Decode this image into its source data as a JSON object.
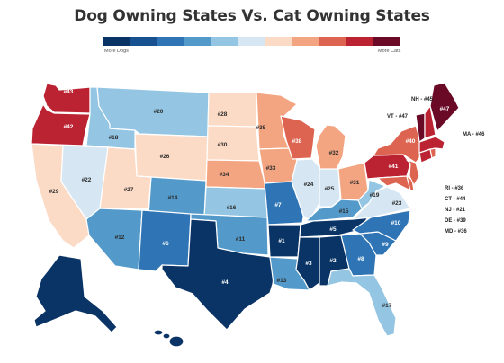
{
  "title": "Dog Owning States Vs. Cat Owning States",
  "legend": {
    "left_label": "More Dogs",
    "right_label": "More Cats",
    "colors": [
      "#0b3466",
      "#17518f",
      "#2f75b5",
      "#5399c9",
      "#94c6e3",
      "#d6e7f3",
      "#fcdbc6",
      "#f3a582",
      "#dd6450",
      "#bb2333",
      "#6a0a26"
    ]
  },
  "states": {
    "WA": {
      "rank": "#43",
      "color": "#bb2333"
    },
    "OR": {
      "rank": "#42",
      "color": "#bb2333"
    },
    "CA": {
      "rank": "#29",
      "color": "#fcdbc6"
    },
    "NV": {
      "rank": "#22",
      "color": "#d6e7f3"
    },
    "ID": {
      "rank": "#18",
      "color": "#94c6e3"
    },
    "MT": {
      "rank": "#20",
      "color": "#94c6e3"
    },
    "WY": {
      "rank": "#26",
      "color": "#fcdbc6"
    },
    "UT": {
      "rank": "#27",
      "color": "#fcdbc6"
    },
    "AZ": {
      "rank": "#12",
      "color": "#5399c9"
    },
    "CO": {
      "rank": "#14",
      "color": "#5399c9"
    },
    "NM": {
      "rank": "#6",
      "color": "#2f75b5"
    },
    "ND": {
      "rank": "#28",
      "color": "#fcdbc6"
    },
    "SD": {
      "rank": "#30",
      "color": "#fcdbc6"
    },
    "NE": {
      "rank": "#34",
      "color": "#f3a582"
    },
    "KS": {
      "rank": "#16",
      "color": "#94c6e3"
    },
    "OK": {
      "rank": "#11",
      "color": "#5399c9"
    },
    "TX": {
      "rank": "#4",
      "color": "#0b3466"
    },
    "MN": {
      "rank": "#35",
      "color": "#f3a582"
    },
    "IA": {
      "rank": "#33",
      "color": "#f3a582"
    },
    "MO": {
      "rank": "#7",
      "color": "#2f75b5"
    },
    "AR": {
      "rank": "#1",
      "color": "#0b3466"
    },
    "LA": {
      "rank": "#13",
      "color": "#5399c9"
    },
    "WI": {
      "rank": "#38",
      "color": "#dd6450"
    },
    "IL": {
      "rank": "#24",
      "color": "#d6e7f3"
    },
    "MI": {
      "rank": "#32",
      "color": "#f3a582"
    },
    "IN": {
      "rank": "#25",
      "color": "#d6e7f3"
    },
    "OH": {
      "rank": "#31",
      "color": "#f3a582"
    },
    "KY": {
      "rank": "#15",
      "color": "#5399c9"
    },
    "TN": {
      "rank": "#5",
      "color": "#0b3466"
    },
    "MS": {
      "rank": "#3",
      "color": "#0b3466"
    },
    "AL": {
      "rank": "#2",
      "color": "#0b3466"
    },
    "GA": {
      "rank": "#8",
      "color": "#2f75b5"
    },
    "FL": {
      "rank": "#17",
      "color": "#94c6e3"
    },
    "SC": {
      "rank": "#9",
      "color": "#2f75b5"
    },
    "NC": {
      "rank": "#10",
      "color": "#2f75b5"
    },
    "VA": {
      "rank": "#23",
      "color": "#d6e7f3"
    },
    "WV": {
      "rank": "#19",
      "color": "#94c6e3"
    },
    "PA": {
      "rank": "#41",
      "color": "#bb2333"
    },
    "NY": {
      "rank": "#40",
      "color": "#dd6450"
    },
    "ME": {
      "rank": "#47",
      "color": "#6a0a26"
    },
    "VT": {
      "rank": "#47",
      "color": "#6a0a26"
    },
    "NH": {
      "rank": "#45",
      "color": "#bb2333"
    },
    "MA": {
      "rank": "#46",
      "color": "#bb2333"
    },
    "RI": {
      "rank": "#36",
      "color": "#dd6450"
    },
    "CT": {
      "rank": "#44",
      "color": "#bb2333"
    },
    "NJ": {
      "rank": "#21",
      "color": "#dd6450"
    },
    "DE": {
      "rank": "#39",
      "color": "#dd6450"
    },
    "MD": {
      "rank": "#36",
      "color": "#dd6450"
    },
    "AK": {
      "color": "#0b3466"
    },
    "HI": {
      "color": "#0b3466"
    }
  },
  "callouts": {
    "NH": "NH - #45",
    "VT": "VT - #47",
    "MA": "MA - #46",
    "RI": "RI - #36",
    "CT": "CT - #44",
    "NJ": "NJ - #21",
    "DE": "DE - #39",
    "MD": "MD - #36"
  }
}
